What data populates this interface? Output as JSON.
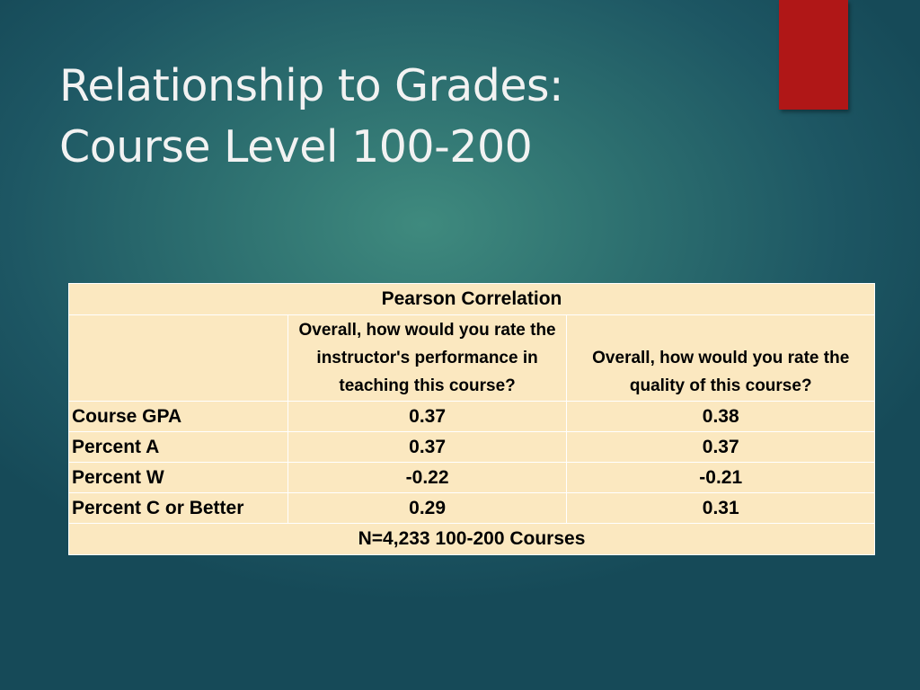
{
  "slide": {
    "title_line1": "Relationship to Grades:",
    "title_line2": "Course Level 100-200"
  },
  "table": {
    "header": "Pearson Correlation",
    "questions": [
      "Overall, how would you rate the instructor's performance in teaching this course?",
      "Overall, how would you rate the quality of this course?"
    ],
    "rows": [
      {
        "label": "Course GPA",
        "q1": "0.37",
        "q2": "0.38"
      },
      {
        "label": "Percent A",
        "q1": "0.37",
        "q2": "0.37"
      },
      {
        "label": "Percent W",
        "q1": "-0.22",
        "q2": "-0.21"
      },
      {
        "label": "Percent C or Better",
        "q1": "0.29",
        "q2": "0.31"
      }
    ],
    "footer": "N=4,233 100-200 Courses"
  },
  "colors": {
    "background": "#2c6e6f",
    "accent": "#b01717",
    "table_fill": "#fbe8c0",
    "title_text": "#f2f2f2"
  }
}
